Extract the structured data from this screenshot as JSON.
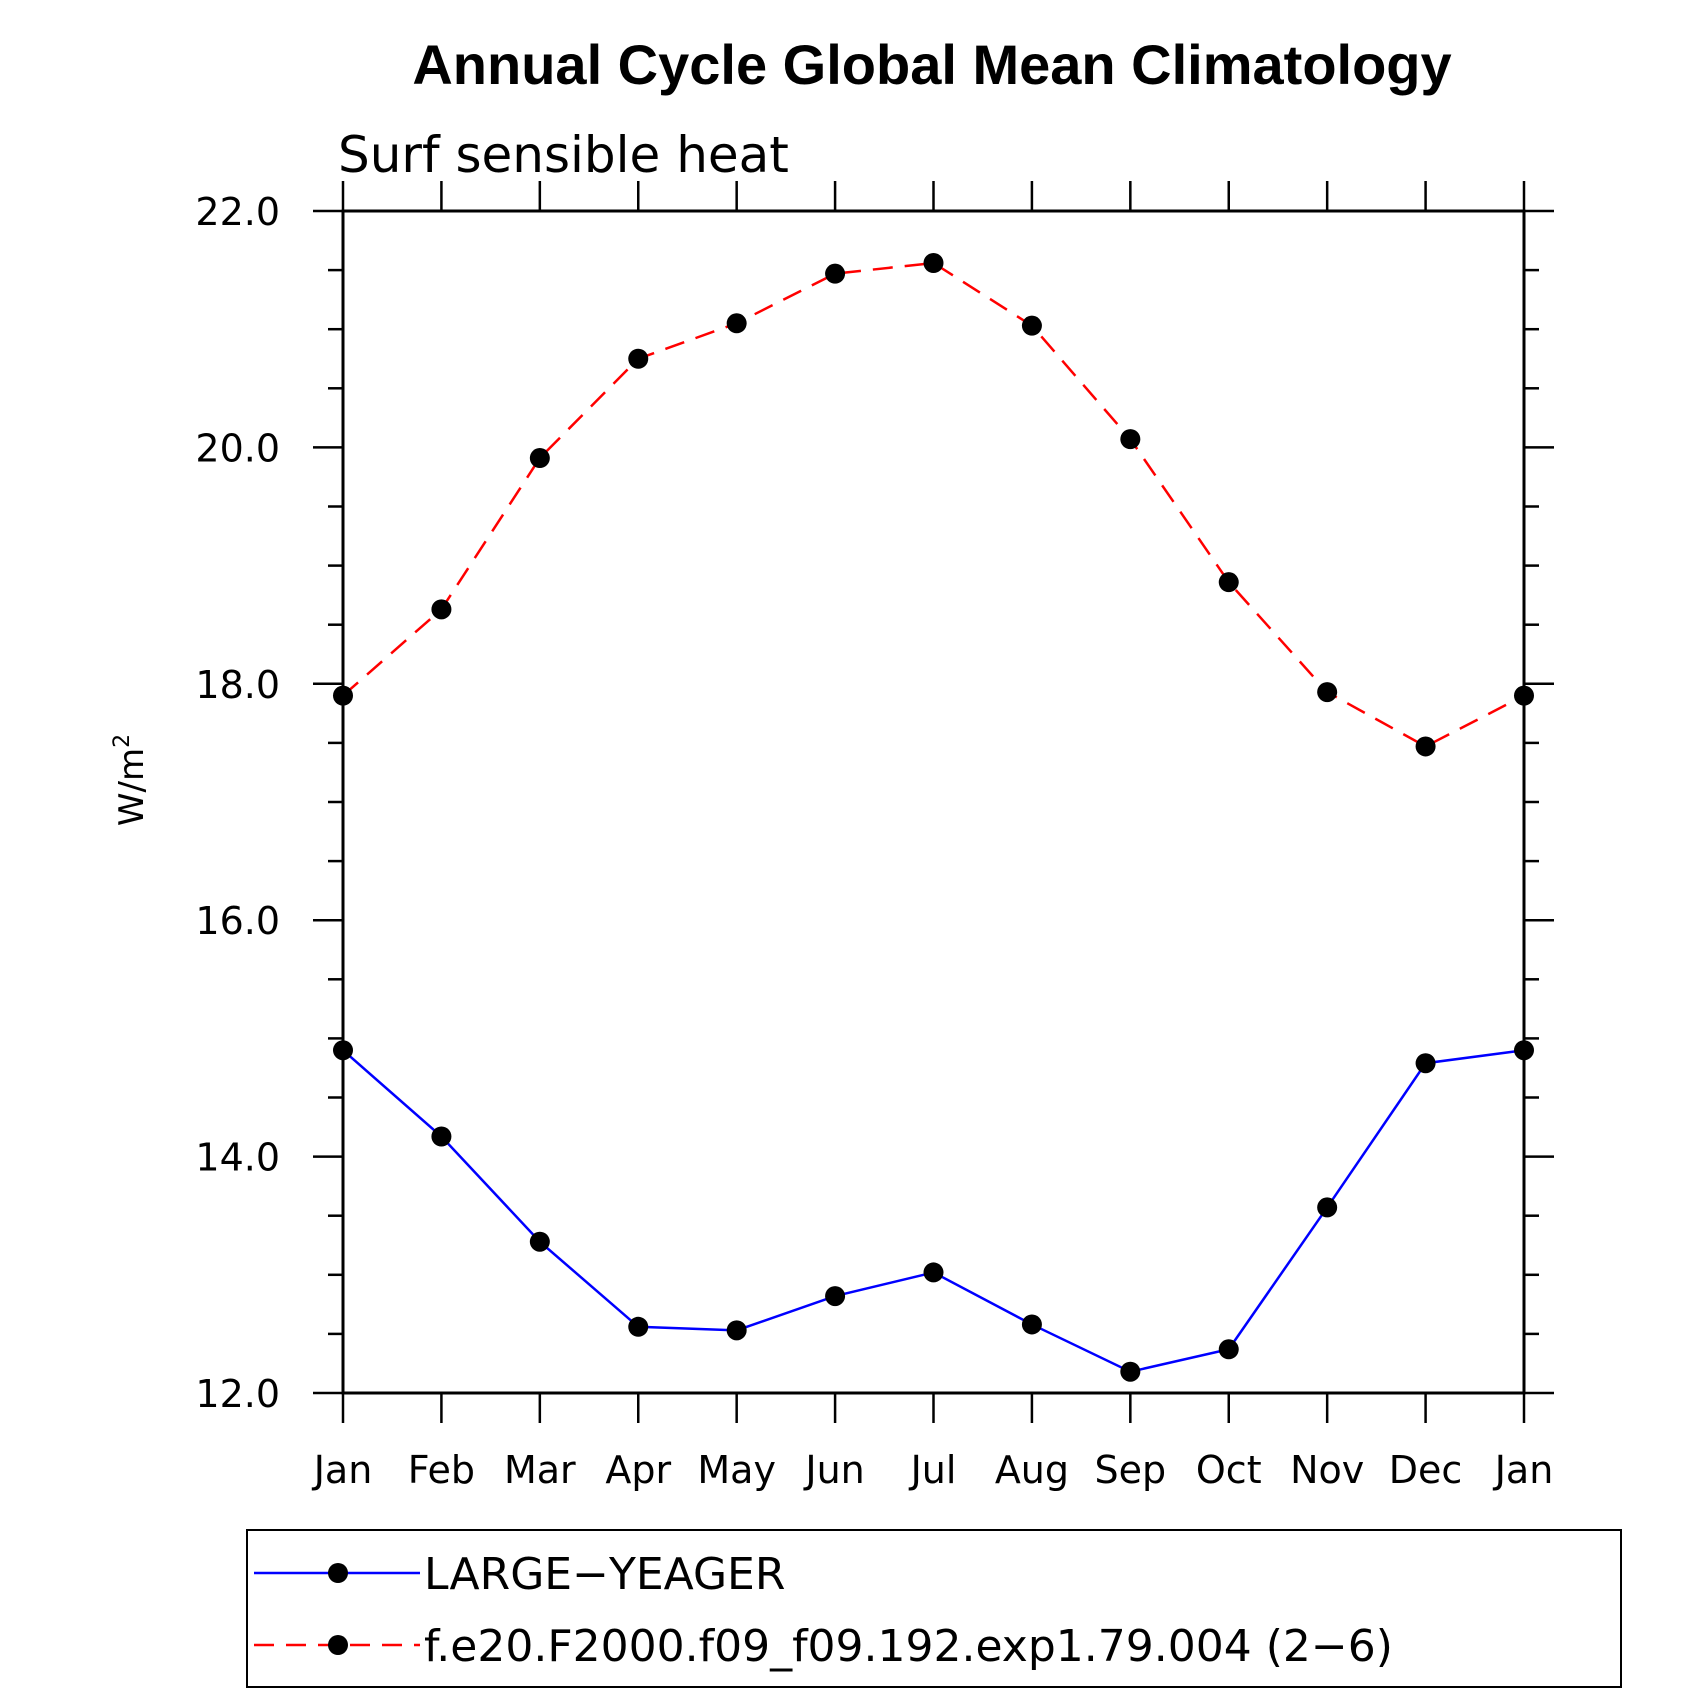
{
  "chart_data": {
    "type": "line",
    "title": "Annual Cycle Global Mean Climatology",
    "subtitle": "Surf sensible heat",
    "ylabel": "W/m",
    "ylabel_sup": "2",
    "categories": [
      "Jan",
      "Feb",
      "Mar",
      "Apr",
      "May",
      "Jun",
      "Jul",
      "Aug",
      "Sep",
      "Oct",
      "Nov",
      "Dec",
      "Jan"
    ],
    "ylim": [
      12.0,
      22.0
    ],
    "yticks": [
      12.0,
      14.0,
      16.0,
      18.0,
      20.0,
      22.0
    ],
    "ytick_labels": [
      "12.0",
      "14.0",
      "16.0",
      "18.0",
      "20.0",
      "22.0"
    ],
    "y_minor_step": 0.5,
    "grid": false,
    "legend_position": "bottom",
    "series": [
      {
        "name": "LARGE−YEAGER",
        "color": "#0000ff",
        "dash": "solid",
        "values": [
          14.9,
          14.17,
          13.28,
          12.56,
          12.53,
          12.82,
          13.02,
          12.58,
          12.18,
          12.37,
          13.57,
          14.79,
          14.9
        ]
      },
      {
        "name": "f.e20.F2000.f09_f09.192.exp1.79.004 (2−6)",
        "color": "#ff0000",
        "dash": "dashed",
        "values": [
          17.9,
          18.63,
          19.91,
          20.75,
          21.05,
          21.47,
          21.56,
          21.03,
          20.07,
          18.86,
          17.93,
          17.47,
          17.9
        ]
      }
    ]
  }
}
